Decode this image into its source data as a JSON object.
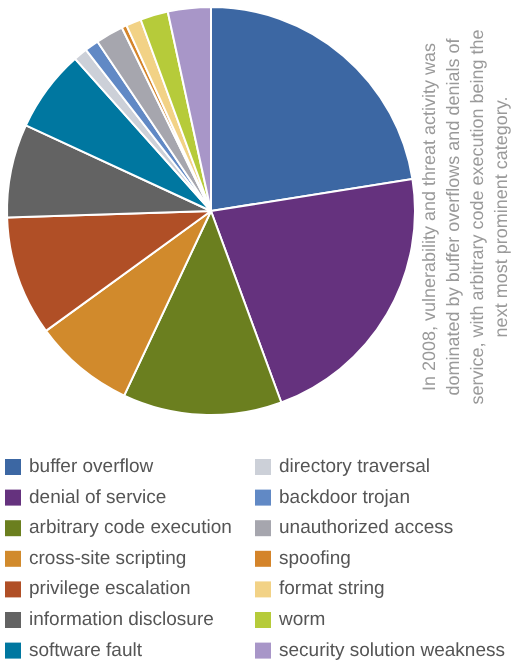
{
  "chart_data": {
    "type": "pie",
    "categories": [
      "buffer overflow",
      "denial of service",
      "arbitrary code execution",
      "cross-site scripting",
      "privilege escalation",
      "information disclosure",
      "software fault",
      "directory traversal",
      "backdoor trojan",
      "unauthorized access",
      "spoofing",
      "format string",
      "worm",
      "security solution weakness"
    ],
    "values": [
      22.5,
      21.9,
      12.6,
      8.0,
      9.5,
      7.4,
      6.5,
      1.1,
      1.1,
      2.2,
      0.4,
      1.2,
      2.2,
      3.4
    ],
    "colors": [
      "#3c67a3",
      "#65327e",
      "#6b7f1f",
      "#d18a2c",
      "#b04f26",
      "#636363",
      "#0077a0",
      "#ccd0d8",
      "#6189c5",
      "#a6a6ae",
      "#d4842a",
      "#f2d286",
      "#b6cb3a",
      "#a896c8"
    ],
    "legend": "bottom",
    "annotations": [
      "In 2008, vulnerability and threat activity was dominated by buffer overflows and denials of service, with arbitrary code execution being the next most prominent category."
    ]
  }
}
